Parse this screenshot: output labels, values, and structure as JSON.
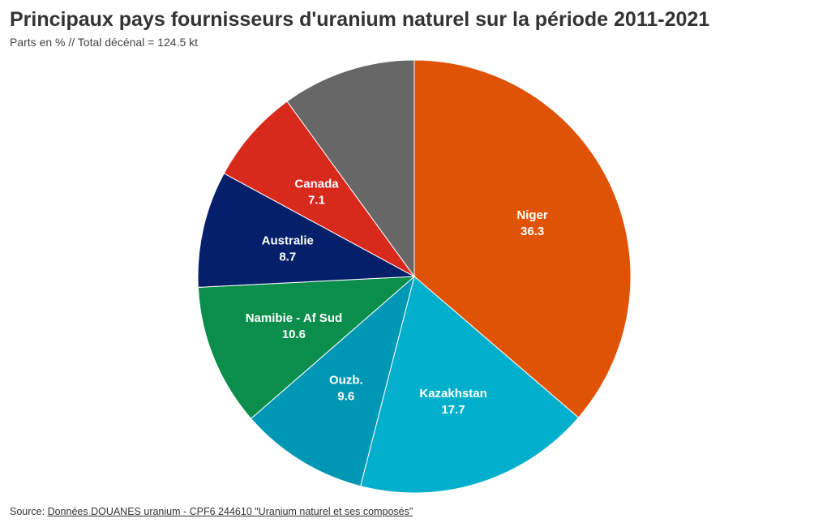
{
  "header": {
    "title": "Principaux pays fournisseurs d'uranium naturel sur la période 2011-2021",
    "subtitle": "Parts en % // Total décénal = 124.5 kt"
  },
  "footer": {
    "source_prefix": "Source: ",
    "source_link": "Données DOUANES uranium - CPF6 244610 \"Uranium naturel et ses composés\""
  },
  "chart_data": {
    "type": "pie",
    "unit": "%",
    "start_angle_deg": 0,
    "direction": "clockwise",
    "slices": [
      {
        "label": "Niger",
        "value": 36.3,
        "color": "#e05206",
        "show_label": true
      },
      {
        "label": "Kazakhstan",
        "value": 17.7,
        "color": "#00afcc",
        "show_label": true
      },
      {
        "label": "Ouzb.",
        "value": 9.6,
        "color": "#0097b4",
        "show_label": true
      },
      {
        "label": "Namibie - Af Sud",
        "value": 10.6,
        "color": "#0b8e4c",
        "show_label": true
      },
      {
        "label": "Australie",
        "value": 8.7,
        "color": "#05206b",
        "show_label": true
      },
      {
        "label": "Canada",
        "value": 7.1,
        "color": "#d8291d",
        "show_label": true
      },
      {
        "label": "",
        "value": 10.0,
        "color": "#676767",
        "show_label": false
      }
    ]
  }
}
